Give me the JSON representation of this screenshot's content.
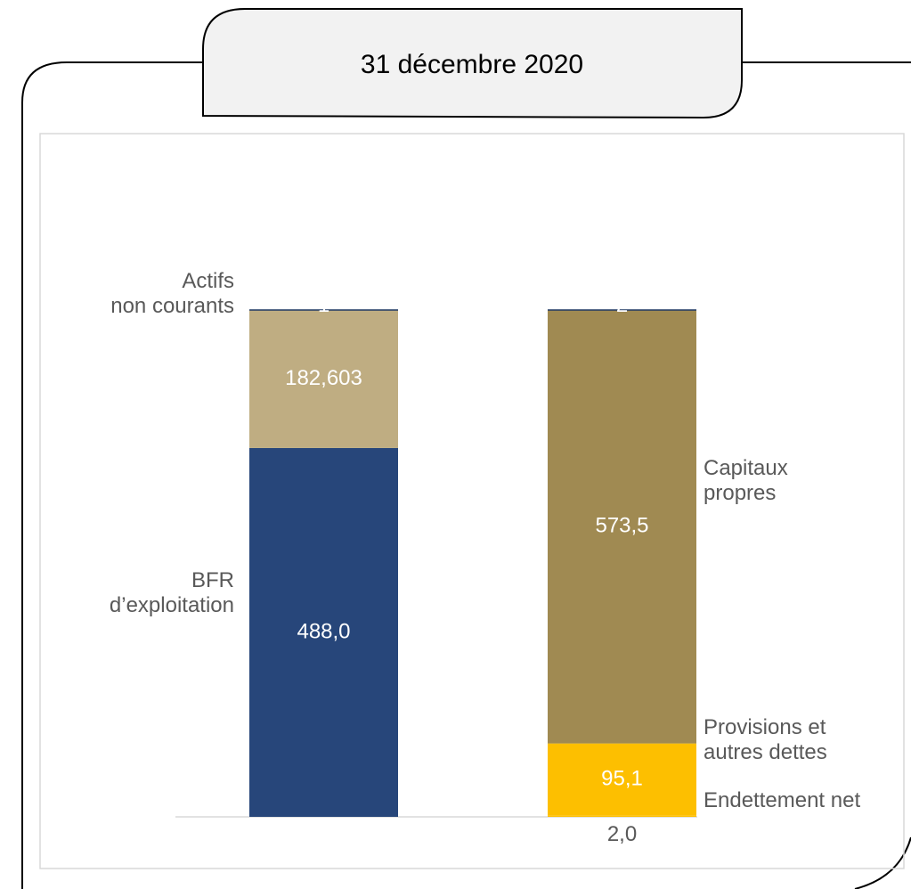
{
  "chart_data": {
    "type": "stacked-bar",
    "title": "31 décembre 2020",
    "categories": [
      "1",
      "2"
    ],
    "series": [
      {
        "name": "BFR\nd’exploitation",
        "color": "#27467a",
        "values": [
          488.0,
          null
        ],
        "value_labels": [
          "488,0",
          null
        ]
      },
      {
        "name": "Actifs\nnon courants",
        "color": "#bfad82",
        "values": [
          182.603,
          null
        ],
        "value_labels": [
          "182,603",
          null
        ]
      },
      {
        "name": "Endettement net",
        "color": "#fdbf00",
        "values": [
          null,
          2.0
        ],
        "value_labels": [
          null,
          "2,0"
        ]
      },
      {
        "name": "Provisions et\nautres dettes",
        "color": "#fdbf00",
        "values": [
          null,
          95.1
        ],
        "value_labels": [
          null,
          "95,1"
        ]
      },
      {
        "name": "Capitaux\npropres",
        "color": "#a08a52",
        "values": [
          null,
          573.5
        ],
        "value_labels": [
          null,
          "573,5"
        ]
      }
    ]
  }
}
